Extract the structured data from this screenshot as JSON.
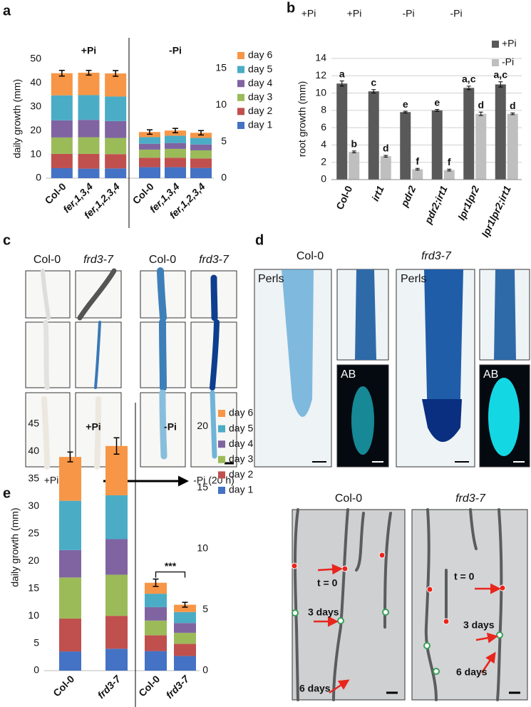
{
  "chart_data": [
    {
      "type": "stacked-bar",
      "label": "a",
      "ylabel": "daily growth (mm)",
      "ylim": [
        0,
        50
      ],
      "yticks": [
        0,
        10,
        20,
        30,
        40,
        50
      ],
      "y2lim": [
        0,
        16.25
      ],
      "y2ticks": [
        0,
        5,
        10,
        15
      ],
      "series": [
        {
          "name": "day 1",
          "color": "#4472c4"
        },
        {
          "name": "day 2",
          "color": "#c0504d"
        },
        {
          "name": "day 3",
          "color": "#9bbb59"
        },
        {
          "name": "day 4",
          "color": "#8064a2"
        },
        {
          "name": "day 5",
          "color": "#4bacc6"
        },
        {
          "name": "day 6",
          "color": "#f79646"
        }
      ],
      "groups": [
        {
          "title": "+Pi",
          "axis": "y",
          "categories": [
            "Col-0",
            "fer,1,3,4",
            "fer,1,2,3,4"
          ],
          "stacks": [
            [
              4.2,
              4.0,
              4.1
            ],
            [
              6.0,
              6.2,
              6.0
            ],
            [
              6.9,
              7.0,
              6.8
            ],
            [
              7.2,
              7.3,
              7.1
            ],
            [
              10.5,
              10.4,
              10.3
            ],
            [
              9.3,
              9.4,
              9.7
            ]
          ],
          "errors": [
            1.2,
            1.0,
            1.2
          ]
        },
        {
          "title": "-Pi",
          "axis": "y2",
          "categories": [
            "Col-0",
            "fer,1,3,4",
            "fer,1,2,3,4"
          ],
          "stacks": [
            [
              1.5,
              1.5,
              1.4
            ],
            [
              1.3,
              1.3,
              1.3
            ],
            [
              1.1,
              1.2,
              1.1
            ],
            [
              0.8,
              0.8,
              0.8
            ],
            [
              0.9,
              1.0,
              0.9
            ],
            [
              0.7,
              0.7,
              0.7
            ]
          ],
          "errors": [
            0.3,
            0.3,
            0.3
          ]
        }
      ]
    },
    {
      "type": "grouped-bar",
      "label": "b",
      "ylabel": "root growth (mm)",
      "conditions": [
        "+Pi",
        "+Pi",
        "-Pi",
        "-Pi"
      ],
      "ylim": [
        0,
        14
      ],
      "yticks": [
        0,
        2,
        4,
        6,
        8,
        10,
        12,
        14
      ],
      "grid": true,
      "legend": "top-right",
      "categories": [
        "Col-0",
        "irt1",
        "pdr2",
        "pdr2;irt1",
        "lpr1lpr2",
        "lpr1lpr2;irt1"
      ],
      "series": [
        {
          "name": "+Pi",
          "color": "#595959",
          "values": [
            11.1,
            10.2,
            7.8,
            8.0,
            10.6,
            11.0
          ],
          "errors": [
            0.3,
            0.2,
            0.1,
            0.1,
            0.2,
            0.3
          ],
          "letters": [
            "a",
            "c",
            "e",
            "e",
            "a,c",
            "a,c"
          ]
        },
        {
          "name": "-Pi",
          "color": "#bfbfbf",
          "values": [
            3.2,
            2.7,
            1.2,
            1.1,
            7.6,
            7.6
          ],
          "errors": [
            0.1,
            0.1,
            0.1,
            0.1,
            0.2,
            0.1
          ],
          "letters": [
            "b",
            "d",
            "f",
            "f",
            "d",
            "d"
          ]
        }
      ]
    },
    {
      "type": "stacked-bar",
      "label": "e",
      "ylabel": "daily growth (mm)",
      "annotation": "***",
      "ylim": [
        0,
        45
      ],
      "yticks": [
        0,
        5,
        10,
        15,
        20,
        25,
        30,
        35,
        40,
        45
      ],
      "y2lim": [
        0,
        20.2
      ],
      "y2ticks": [
        0,
        5,
        10,
        15,
        20
      ],
      "series": [
        {
          "name": "day 1",
          "color": "#4472c4"
        },
        {
          "name": "day 2",
          "color": "#c0504d"
        },
        {
          "name": "day 3",
          "color": "#9bbb59"
        },
        {
          "name": "day 4",
          "color": "#8064a2"
        },
        {
          "name": "day 5",
          "color": "#4bacc6"
        },
        {
          "name": "day 6",
          "color": "#f79646"
        }
      ],
      "groups": [
        {
          "title": "+Pi",
          "axis": "y",
          "categories": [
            "Col-0",
            "frd3-7"
          ],
          "stacks": [
            [
              3.5,
              4.0
            ],
            [
              6.0,
              6.0
            ],
            [
              7.5,
              7.5
            ],
            [
              5.0,
              6.5
            ],
            [
              9.0,
              8.0
            ],
            [
              8.0,
              9.0
            ]
          ],
          "errors": [
            0.9,
            1.5
          ]
        },
        {
          "title": "-Pi",
          "axis": "y2",
          "categories": [
            "Col-0",
            "frd3-7"
          ],
          "stacks": [
            [
              1.6,
              1.2
            ],
            [
              1.3,
              1.0
            ],
            [
              1.2,
              0.9
            ],
            [
              1.1,
              0.8
            ],
            [
              1.1,
              0.9
            ],
            [
              0.9,
              0.6
            ]
          ],
          "errors": [
            0.3,
            0.2
          ]
        }
      ]
    }
  ],
  "figure": {
    "c": {
      "label": "c",
      "columns": [
        "Col-0",
        "frd3-7",
        "Col-0",
        "frd3-7"
      ],
      "from": "+Pi",
      "to": "-Pi (20 h)"
    },
    "d": {
      "label": "d",
      "columns": [
        "Col-0",
        "frd3-7"
      ],
      "stains": [
        "Perls",
        "AB",
        "Perls",
        "AB"
      ]
    },
    "e_images": {
      "columns": [
        "Col-0",
        "frd3-7"
      ],
      "markers": [
        [
          "t = 0",
          "3 days",
          "6 days"
        ],
        [
          "t = 0",
          "3 days",
          "6 days"
        ]
      ]
    }
  }
}
